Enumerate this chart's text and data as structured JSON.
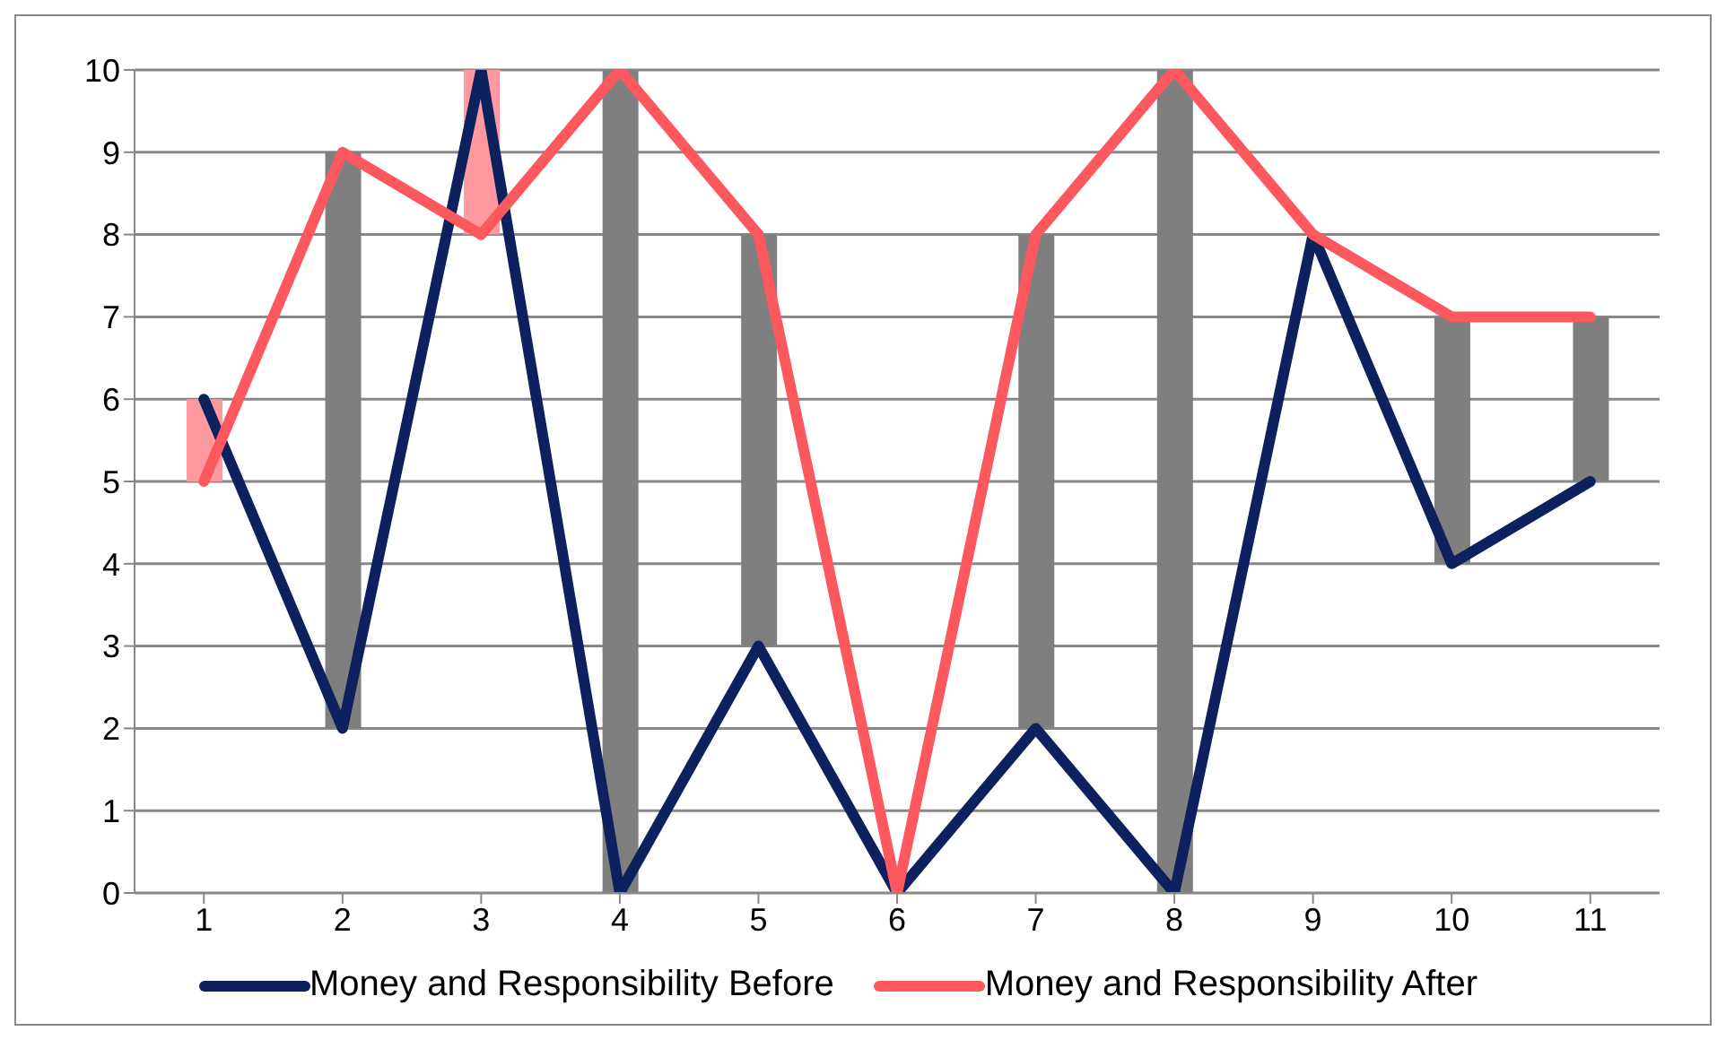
{
  "chart_data": {
    "type": "line",
    "categories": [
      "1",
      "2",
      "3",
      "4",
      "5",
      "6",
      "7",
      "8",
      "9",
      "10",
      "11"
    ],
    "series": [
      {
        "name": "Money and Responsibility  Before",
        "color": "#0d215e",
        "values": [
          6,
          2,
          10,
          0,
          3,
          0,
          2,
          0,
          8,
          4,
          5
        ]
      },
      {
        "name": "Money and Responsibility  After",
        "color": "#fe585f",
        "values": [
          5,
          9,
          8,
          10,
          8,
          0,
          8,
          10,
          8,
          7,
          7
        ]
      },
      {
        "type": "bar",
        "color": "#7f7f7f",
        "colors": [
          "#fe9a9f",
          "#7f7f7f",
          "#fe9a9f",
          "#7f7f7f",
          "#7f7f7f",
          "#7f7f7f",
          "#7f7f7f",
          "#7f7f7f",
          "#7f7f7f",
          "#7f7f7f",
          "#7f7f7f"
        ],
        "base": [
          5,
          2,
          8,
          0,
          3,
          null,
          2,
          0,
          null,
          4,
          5
        ],
        "values": [
          1,
          7,
          2,
          10,
          5,
          null,
          6,
          10,
          null,
          3,
          2
        ]
      }
    ],
    "ylim": [
      0,
      10
    ],
    "yticks": [
      0,
      1,
      2,
      3,
      4,
      5,
      6,
      7,
      8,
      9,
      10
    ],
    "grid": "y",
    "legend": "bottom",
    "marker": "none",
    "line_style": "solid"
  }
}
